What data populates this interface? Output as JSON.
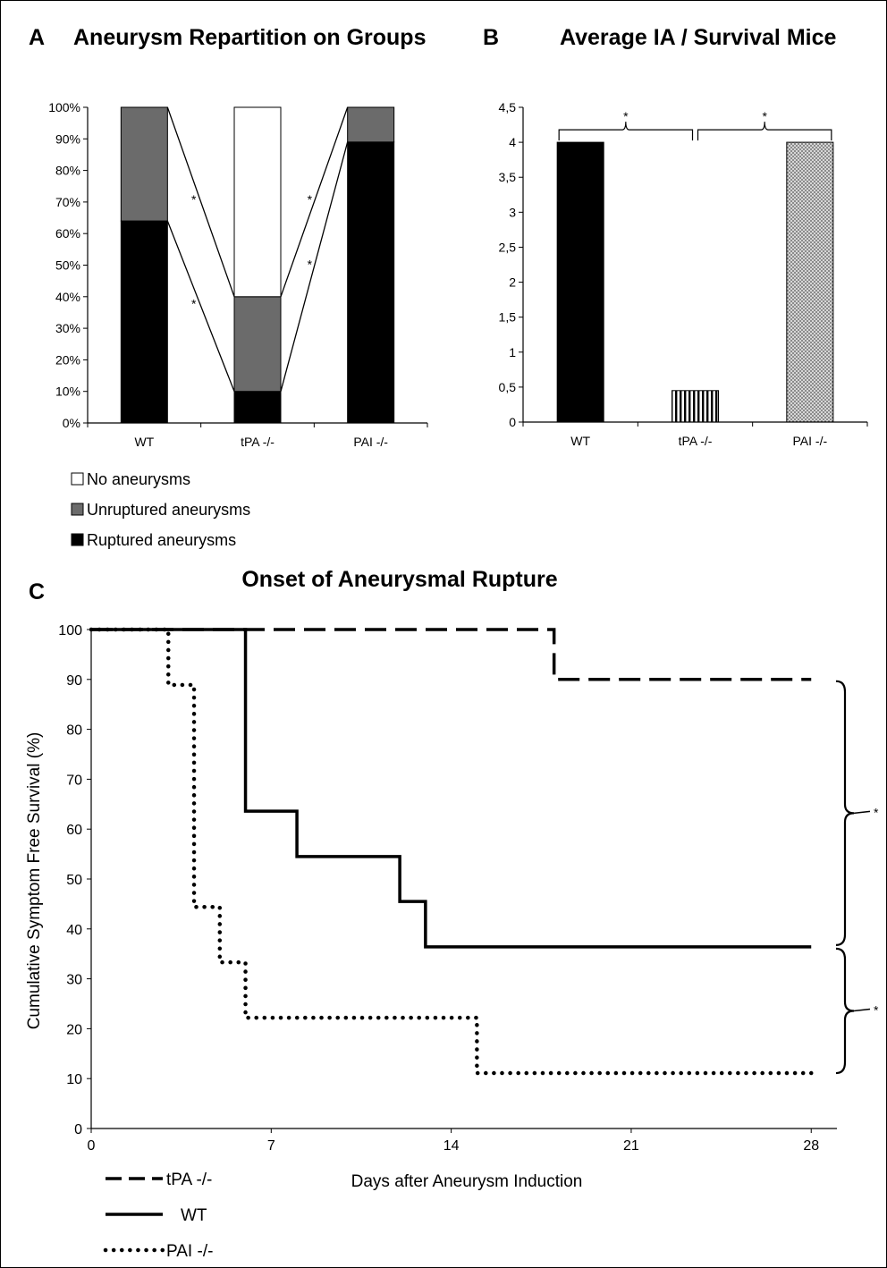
{
  "panel_labels": {
    "a": "A",
    "b": "B",
    "c": "C"
  },
  "chart_data": [
    {
      "type": "bar",
      "stacked": true,
      "panel": "A",
      "title": "Aneurysm Repartition on Groups",
      "categories": [
        "WT",
        "tPA  -/-",
        "PAI -/-"
      ],
      "y_ticks": [
        "0%",
        "10%",
        "20%",
        "30%",
        "40%",
        "50%",
        "60%",
        "70%",
        "80%",
        "90%",
        "100%"
      ],
      "ylim": [
        0,
        100
      ],
      "series": [
        {
          "name": "Ruptured aneurysms",
          "values": [
            64,
            10,
            89
          ],
          "color": "#000000"
        },
        {
          "name": "Unruptured aneurysms",
          "values": [
            36,
            30,
            11
          ],
          "color": "#6b6b6b"
        },
        {
          "name": "No aneurysms",
          "values": [
            0,
            60,
            0
          ],
          "color": "#ffffff"
        }
      ],
      "legend_order": [
        "No aneurysms",
        "Unruptured aneurysms",
        "Ruptured aneurysms"
      ],
      "legend_position": "bottom-left",
      "significance": "*"
    },
    {
      "type": "bar",
      "panel": "B",
      "title": "Average IA / Survival Mice",
      "categories": [
        "WT",
        "tPA  -/-",
        "PAI -/-"
      ],
      "values": [
        4,
        0.45,
        4
      ],
      "fills": [
        "solid-black",
        "vertical-stripes",
        "dotted-gray"
      ],
      "y_ticks": [
        "0",
        "0,5",
        "1",
        "1,5",
        "2",
        "2,5",
        "3",
        "3,5",
        "4",
        "4,5"
      ],
      "ylim": [
        0,
        4.5
      ],
      "significance": "*"
    },
    {
      "type": "line",
      "panel": "C",
      "title": "Onset of Aneurysmal Rupture",
      "xlabel": "Days after Aneurysm Induction",
      "ylabel": "Cumulative Symptom Free Survival (%)",
      "xlim": [
        0,
        29
      ],
      "ylim": [
        0,
        100
      ],
      "x_ticks": [
        "0",
        "7",
        "14",
        "21",
        "28"
      ],
      "y_ticks": [
        "0",
        "10",
        "20",
        "30",
        "40",
        "50",
        "60",
        "70",
        "80",
        "90",
        "100"
      ],
      "series": [
        {
          "name": "tPA -/-",
          "style": "dashed",
          "x": [
            0,
            18,
            18,
            28
          ],
          "y": [
            100,
            100,
            90,
            90
          ]
        },
        {
          "name": "WT",
          "style": "solid",
          "x": [
            0,
            6,
            6,
            8,
            8,
            12,
            12,
            13,
            13,
            28
          ],
          "y": [
            100,
            100,
            63.6,
            63.6,
            54.5,
            54.5,
            45.5,
            45.5,
            36.4,
            36.4
          ]
        },
        {
          "name": "PAI -/-",
          "style": "dotted",
          "x": [
            0,
            3,
            3,
            4,
            4,
            5,
            5,
            6,
            6,
            15,
            15,
            28
          ],
          "y": [
            100,
            100,
            88.9,
            88.9,
            44.4,
            44.4,
            33.3,
            33.3,
            22.2,
            22.2,
            11.1,
            11.1
          ]
        }
      ],
      "legend_position": "bottom-left",
      "significance": "*"
    }
  ]
}
